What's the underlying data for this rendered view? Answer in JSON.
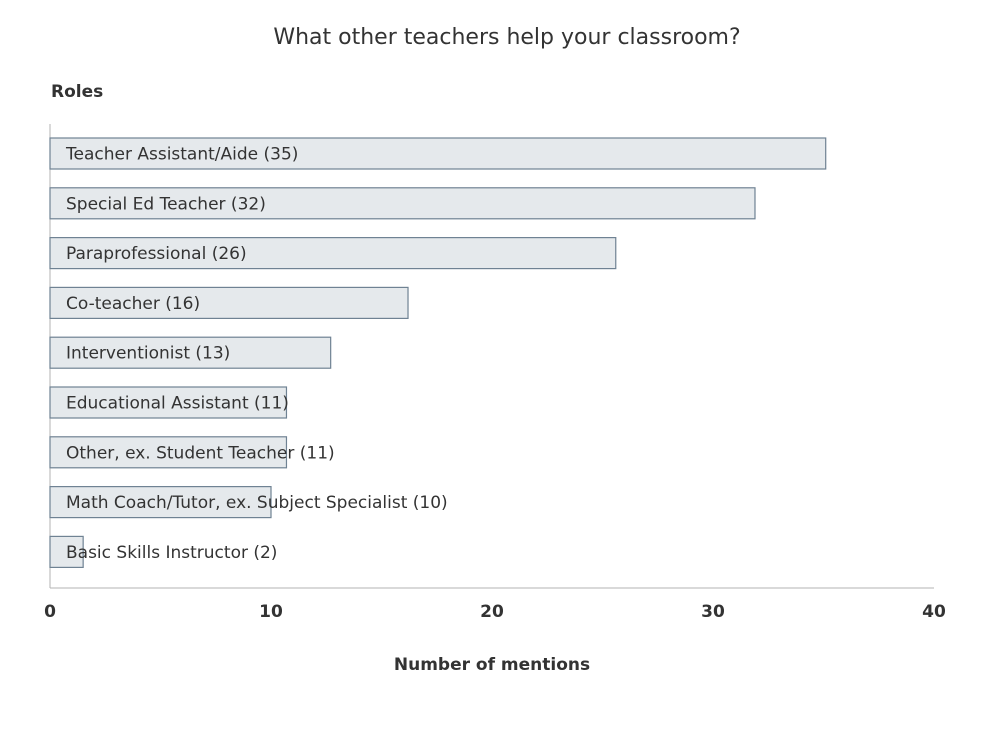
{
  "chart_data": {
    "type": "bar",
    "orientation": "horizontal",
    "title": "What other teachers help your classroom?",
    "ylabel": "Roles",
    "xlabel": "Number of mentions",
    "xlim": [
      0,
      40
    ],
    "x_ticks": [
      0,
      10,
      20,
      30,
      40
    ],
    "grid": false,
    "categories": [
      "Teacher Assistant/Aide",
      "Special Ed Teacher",
      "Paraprofessional",
      "Co-teacher",
      "Interventionist",
      "Educational Assistant",
      "Other, ex. Student Teacher",
      "Math Coach/Tutor, ex. Subject Specialist",
      "Basic Skills Instructor"
    ],
    "values": [
      35,
      32,
      26,
      16,
      13,
      11,
      11,
      10,
      2
    ],
    "bar_values": [
      35.1,
      31.9,
      25.6,
      16.2,
      12.7,
      10.7,
      10.7,
      10.0,
      1.5
    ],
    "labels": [
      "Teacher Assistant/Aide (35)",
      "Special Ed Teacher (32)",
      "Paraprofessional (26)",
      "Co-teacher (16)",
      "Interventionist (13)",
      "Educational Assistant (11)",
      "Other, ex. Student Teacher (11)",
      "Math Coach/Tutor, ex. Subject Specialist (10)",
      "Basic Skills Instructor (2)"
    ],
    "colors": {
      "bar_fill": "#e5e9ec",
      "bar_stroke": "#6f8293",
      "axis": "#b3b3b3",
      "text": "#333333"
    }
  }
}
